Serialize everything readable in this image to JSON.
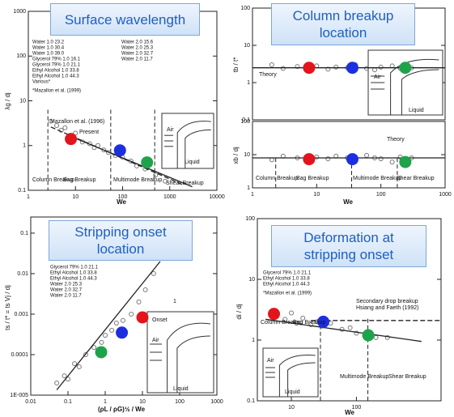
{
  "chart_data": [
    {
      "type": "scatter",
      "title": "Surface wavelength",
      "x_label": "We",
      "y_label": "λg / dj",
      "log_x": true,
      "log_y": true,
      "xlim": [
        1,
        10000
      ],
      "ylim": [
        0.1,
        1000
      ],
      "xticks": [
        1,
        10,
        100,
        1000,
        10000
      ],
      "yticks": [
        0.1,
        1,
        10,
        100,
        1000
      ],
      "legend_rows": [
        "Water 1.0 23.2",
        "Water 1.0 30.4",
        "Water 1.0 39.0",
        "Glycerol 79% 1.0 16.1",
        "Glycerol 79% 1.0 21.1",
        "Ethyl Alcohol 1.0 33.8",
        "Ethyl Alcohol 1.0 44.3",
        "Various*"
      ],
      "legend_rows_2": [
        "Water 2.0 15.6",
        "Water 2.0 25.3",
        "Water 2.0 32.7",
        "Water 2.0 11.7"
      ],
      "footnote": "*Mazallon et al. (1999)",
      "annotations": [
        "Mazallon et al. (1996)",
        "Present",
        "Column Breakup",
        "Bag Breakup",
        "Multimode Breakup",
        "Shear Breakup",
        "Air",
        "Liquid"
      ],
      "regime_bounds": [
        2.6,
        56,
        480
      ],
      "series": [
        {
          "color": "#777777",
          "marker": "open",
          "x": [
            3,
            4,
            5,
            6,
            8,
            10,
            14,
            20,
            25,
            30,
            40,
            50,
            70,
            100,
            150,
            200,
            300,
            500,
            800
          ],
          "values": [
            3.5,
            2.8,
            2.2,
            2.5,
            1.6,
            1.9,
            1.2,
            1.1,
            0.9,
            1.0,
            0.8,
            0.7,
            0.6,
            0.55,
            0.45,
            0.35,
            0.3,
            0.22,
            0.16
          ]
        },
        {
          "color": "#222222",
          "marker": "dashed-line",
          "x": [
            3,
            2000
          ],
          "values": [
            2.6,
            0.13
          ]
        },
        {
          "color": "#222222",
          "marker": "line",
          "x": [
            8,
            3000
          ],
          "values": [
            1.6,
            0.12
          ]
        },
        {
          "color": "#e3141c",
          "marker": "dot",
          "x": [
            8
          ],
          "values": [
            1.4
          ]
        },
        {
          "color": "#1c2fe0",
          "marker": "dot",
          "x": [
            88
          ],
          "values": [
            0.78
          ]
        },
        {
          "color": "#1fa34a",
          "marker": "dot",
          "x": [
            330
          ],
          "values": [
            0.42
          ]
        }
      ]
    },
    {
      "type": "scatter",
      "title": "Column breakup location",
      "y_label": "tb / t*",
      "log_x": true,
      "log_y": true,
      "xlim": [
        1,
        1000
      ],
      "ylim": [
        0.1,
        100
      ],
      "yticks": [
        0.1,
        1,
        10,
        100
      ],
      "annotations": [
        "Theory",
        "Air",
        "Liquid"
      ],
      "series": [
        {
          "color": "#777777",
          "marker": "open",
          "x": [
            2,
            3,
            5,
            7,
            10,
            15,
            20,
            30,
            40,
            60,
            80,
            100,
            150,
            200,
            300
          ],
          "values": [
            3,
            2.4,
            2.7,
            2.2,
            2.8,
            2.3,
            2.6,
            2.5,
            3,
            2.4,
            2.2,
            2.6,
            2.8,
            2.4,
            2.5
          ]
        },
        {
          "color": "#222222",
          "marker": "line",
          "x": [
            1,
            1000
          ],
          "values": [
            2.5,
            2.5
          ]
        },
        {
          "color": "#e3141c",
          "marker": "dot",
          "x": [
            7.6
          ],
          "values": [
            2.5
          ]
        },
        {
          "color": "#1c2fe0",
          "marker": "dot",
          "x": [
            36
          ],
          "values": [
            2.5
          ]
        },
        {
          "color": "#1fa34a",
          "marker": "dot",
          "x": [
            240
          ],
          "values": [
            2.5
          ]
        }
      ]
    },
    {
      "type": "scatter",
      "x_label": "We",
      "y_label": "xb / dj",
      "log_x": true,
      "log_y": true,
      "xlim": [
        1,
        1000
      ],
      "ylim": [
        1,
        100
      ],
      "xticks": [
        1,
        10,
        100,
        1000
      ],
      "yticks": [
        1,
        10,
        100
      ],
      "annotations": [
        "Theory",
        "Column Breakup",
        "Bag Breakup",
        "Multimode Breakup",
        "Shear Breakup"
      ],
      "regime_bounds": [
        2.3,
        35,
        180
      ],
      "series": [
        {
          "color": "#777777",
          "marker": "open",
          "x": [
            2,
            3,
            5,
            7,
            10,
            15,
            20,
            30,
            40,
            60,
            80,
            100,
            150,
            200,
            300
          ],
          "values": [
            7,
            9,
            8,
            6.5,
            8.5,
            7.5,
            9,
            8,
            7,
            9.5,
            8,
            7.5,
            6,
            8.5,
            8
          ]
        },
        {
          "color": "#222222",
          "marker": "line",
          "x": [
            1,
            1000
          ],
          "values": [
            8,
            8
          ]
        },
        {
          "color": "#e3141c",
          "marker": "dot",
          "x": [
            7.6
          ],
          "values": [
            7.3
          ]
        },
        {
          "color": "#1c2fe0",
          "marker": "dot",
          "x": [
            36
          ],
          "values": [
            7.3
          ]
        },
        {
          "color": "#1fa34a",
          "marker": "dot",
          "x": [
            240
          ],
          "values": [
            6
          ]
        }
      ]
    },
    {
      "type": "scatter",
      "title": "Stripping onset location",
      "x_label": "(ρL / ρG)½ / We",
      "y_label": "ts / t* = ts Vj / dj",
      "log_x": true,
      "log_y": true,
      "xlim": [
        0.01,
        1000
      ],
      "ylim": [
        1e-05,
        0.25
      ],
      "xticks": [
        0.01,
        0.1,
        1,
        10,
        100,
        1000
      ],
      "yticks": [
        {
          "value": 1e-05,
          "label": "1E-005"
        },
        0.0001,
        0.001,
        0.01,
        0.1
      ],
      "legend_rows": [
        "Glycerol 79% 1.0 21.1",
        "Ethyl Alcohol 1.0 33.8",
        "Ethyl Alcohol 1.0 44.3",
        "Water 2.0 25.3",
        "Water 2.0 32.7",
        "Water 2.0 11.7"
      ],
      "annotations": [
        "1",
        "Onset",
        "Air",
        "Liquid"
      ],
      "series": [
        {
          "color": "#777777",
          "marker": "open",
          "x": [
            0.05,
            0.08,
            0.1,
            0.15,
            0.2,
            0.3,
            0.5,
            0.8,
            1,
            1.5,
            2,
            3,
            5,
            8,
            12,
            20
          ],
          "values": [
            2e-05,
            3e-05,
            2.5e-05,
            6e-05,
            5e-05,
            0.0001,
            0.00015,
            0.0002,
            0.0003,
            0.0004,
            0.0006,
            0.0007,
            0.001,
            0.002,
            0.004,
            0.01
          ]
        },
        {
          "color": "#222222",
          "marker": "line",
          "x": [
            0.05,
            30
          ],
          "values": [
            1.35e-05,
            0.02
          ]
        },
        {
          "color": "#e3141c",
          "marker": "dot",
          "x": [
            10
          ],
          "values": [
            0.00083
          ]
        },
        {
          "color": "#1c2fe0",
          "marker": "dot",
          "x": [
            2.8
          ],
          "values": [
            0.00035
          ]
        },
        {
          "color": "#1fa34a",
          "marker": "dot",
          "x": [
            0.78
          ],
          "values": [
            0.000115
          ]
        }
      ]
    },
    {
      "type": "scatter",
      "title": "Deformation at stripping onset",
      "x_label": "We",
      "y_label": "di / dj",
      "log_x": true,
      "log_y": true,
      "xlim": [
        3,
        2000
      ],
      "ylim": [
        0.1,
        100
      ],
      "xticks": [
        10,
        100
      ],
      "yticks": [
        0.1,
        1,
        10,
        100
      ],
      "legend_rows": [
        "Glycerol 79% 1.0 21.1",
        "Ethyl Alcohol 1.0 33.8",
        "Ethyl Alcohol 1.0 44.3"
      ],
      "footnote": "*Mazallon et al. (1999)",
      "annotations": [
        "Secondary drop breakup",
        "Hsiang and Faeth (1992)",
        "Column Breakup",
        "Bag Breakup",
        "Multimode Breakup",
        "Shear Breakup",
        "Air",
        "Liquid"
      ],
      "regime_bounds": [
        28,
        150
      ],
      "series": [
        {
          "color": "#777777",
          "marker": "open",
          "x": [
            6,
            8,
            10,
            12,
            15,
            20,
            25,
            30,
            40,
            60,
            80,
            100,
            150,
            200,
            300
          ],
          "values": [
            2.5,
            2.2,
            2.8,
            1.9,
            2.3,
            1.8,
            2.0,
            1.7,
            1.9,
            1.5,
            1.6,
            1.3,
            1.2,
            1.1,
            1.1
          ]
        },
        {
          "color": "#222222",
          "marker": "dashed-line",
          "x": [
            20,
            2000
          ],
          "values": [
            2.1,
            2.1
          ]
        },
        {
          "color": "#222222",
          "marker": "line",
          "x": [
            4,
            1000
          ],
          "values": [
            2.2,
            0.95
          ]
        },
        {
          "color": "#e3141c",
          "marker": "dot",
          "x": [
            5.4
          ],
          "values": [
            2.7
          ]
        },
        {
          "color": "#1c2fe0",
          "marker": "dot",
          "x": [
            31
          ],
          "values": [
            2.0
          ]
        },
        {
          "color": "#1fa34a",
          "marker": "dot",
          "x": [
            152
          ],
          "values": [
            1.2
          ]
        }
      ]
    }
  ]
}
